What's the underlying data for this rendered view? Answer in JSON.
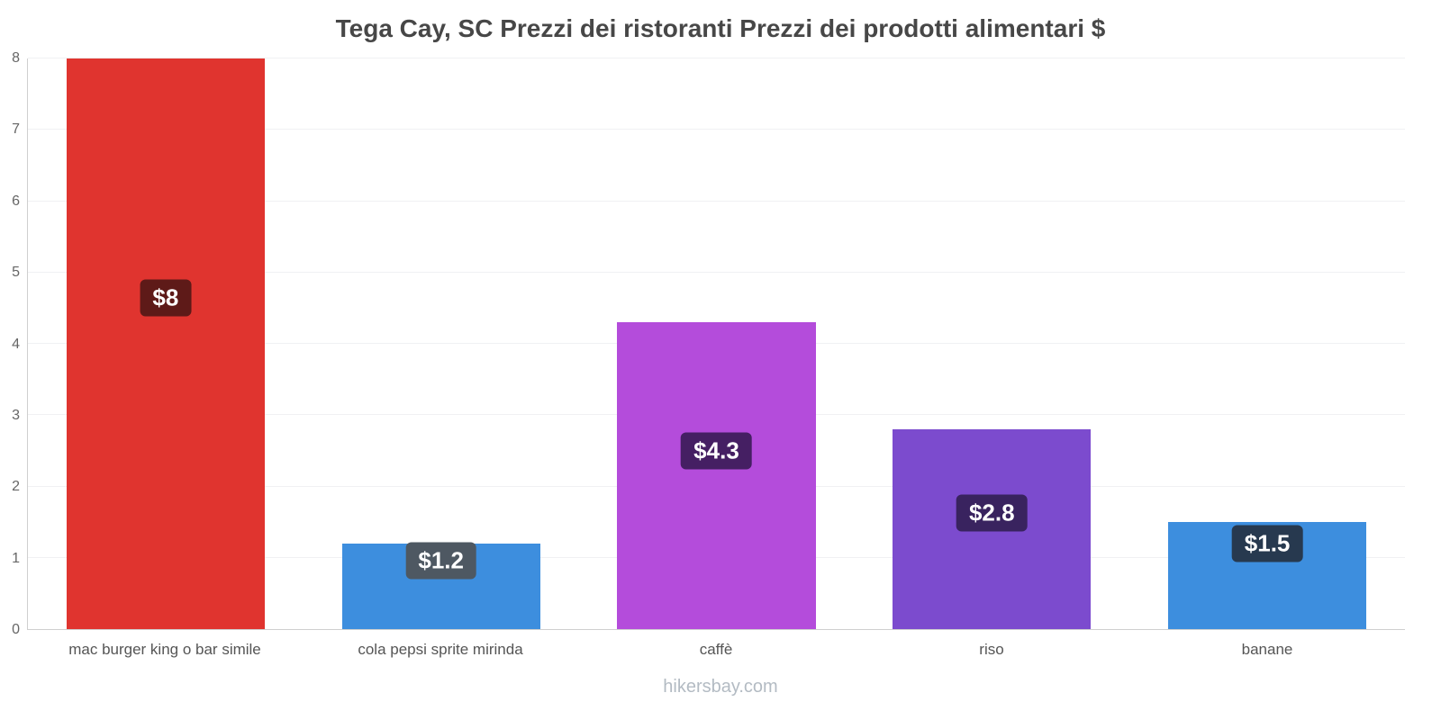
{
  "footer": "hikersbay.com",
  "chart_data": {
    "type": "bar",
    "title": "Tega Cay, SC Prezzi dei ristoranti Prezzi dei prodotti alimentari $",
    "categories": [
      "mac burger king o bar simile",
      "cola pepsi sprite mirinda",
      "caffè",
      "riso",
      "banane"
    ],
    "values": [
      8,
      1.2,
      4.3,
      2.8,
      1.5
    ],
    "value_labels": [
      "$8",
      "$1.2",
      "$4.3",
      "$2.8",
      "$1.5"
    ],
    "bar_colors": [
      "#e0342f",
      "#3d8ede",
      "#b44cdb",
      "#7c4bce",
      "#3d8ede"
    ],
    "badge_colors": [
      "#5e1a18",
      "#4e5862",
      "#451f63",
      "#39235f",
      "#27394f"
    ],
    "ylim": [
      0,
      8
    ],
    "yticks": [
      0,
      1,
      2,
      3,
      4,
      5,
      6,
      7,
      8
    ],
    "xlabel": "",
    "ylabel": "",
    "grid": true,
    "legend": false,
    "axis_color": "#cfcfcf",
    "grid_color": "#f0f1f3",
    "tick_label_color": "#666666",
    "category_label_color": "#555555",
    "title_color": "#474747",
    "footer_color": "#b3bbc3"
  }
}
